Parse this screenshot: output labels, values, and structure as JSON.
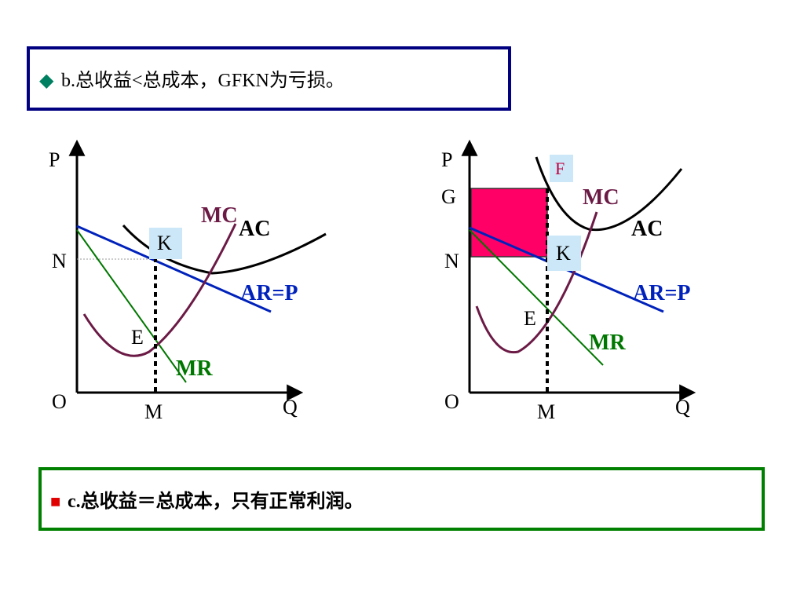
{
  "header": {
    "bullet": "◆",
    "text": "b.总收益<总成本，GFKN为亏损。"
  },
  "diagrams": [
    {
      "p": "P",
      "n": "N",
      "o": "O",
      "m": "M",
      "q": "Q",
      "k": "K",
      "mc": "MC",
      "ac": "AC",
      "ar": "AR=P",
      "e": "E",
      "mr": "MR"
    },
    {
      "p": "P",
      "g": "G",
      "f": "F",
      "n": "N",
      "o": "O",
      "m": "M",
      "q": "Q",
      "k": "K",
      "mc": "MC",
      "ac": "AC",
      "ar": "AR=P",
      "e": "E",
      "mr": "MR"
    }
  ],
  "footer": {
    "bullet": "■",
    "text": "c.总收益＝总成本，只有正常利润。"
  }
}
